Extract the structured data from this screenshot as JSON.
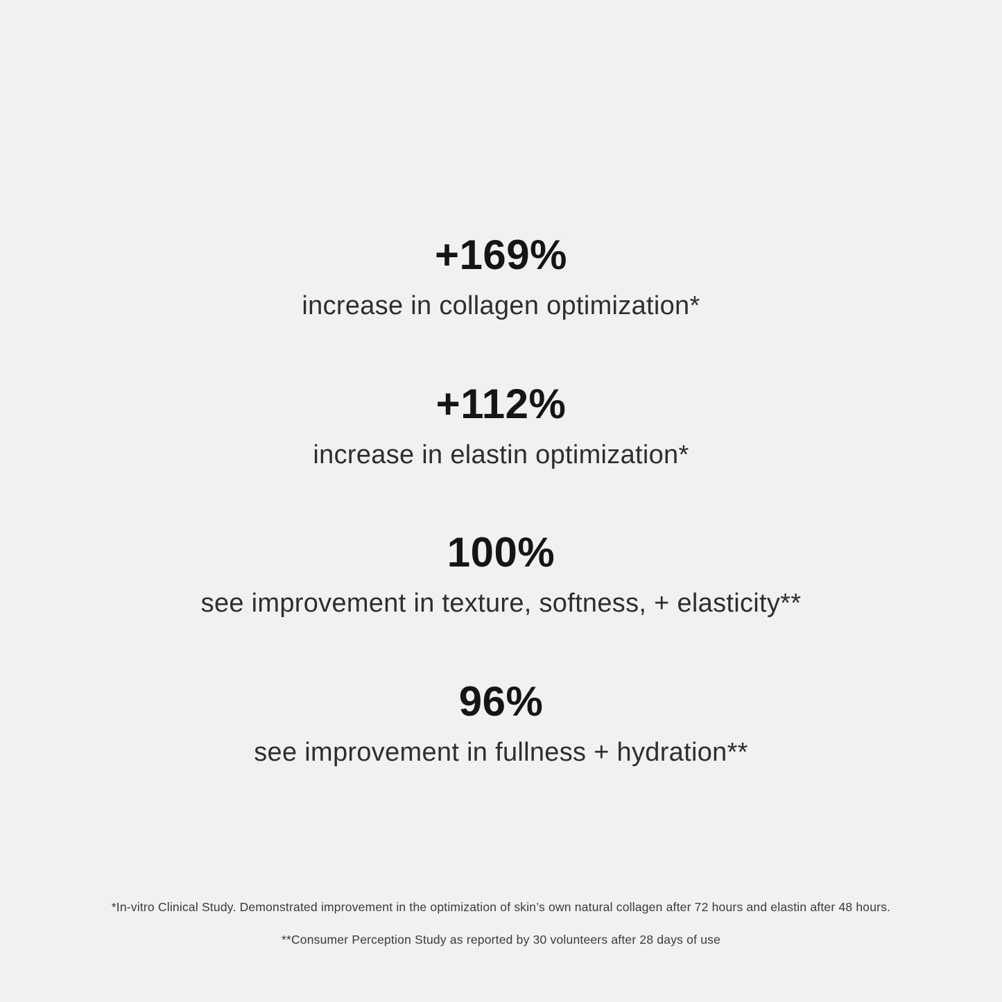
{
  "page": {
    "background_color": "#f0f1f2",
    "number_text_color": "#151515",
    "label_text_color": "#2e2e2e",
    "footnote_text_color": "#3a3a3a"
  },
  "stats": [
    {
      "value": "+169%",
      "label": "increase in collagen optimization*"
    },
    {
      "value": "+112%",
      "label": "increase in elastin optimization*"
    },
    {
      "value": "100%",
      "label": "see improvement in texture, softness, + elasticity**"
    },
    {
      "value": "96%",
      "label": "see improvement in fullness + hydration**"
    }
  ],
  "footnotes": [
    "*In-vitro Clinical Study. Demonstrated improvement in the optimization of skin’s own natural collagen after 72 hours and elastin after 48 hours.",
    "**Consumer Perception Study as reported by 30 volunteers after 28 days of use"
  ]
}
